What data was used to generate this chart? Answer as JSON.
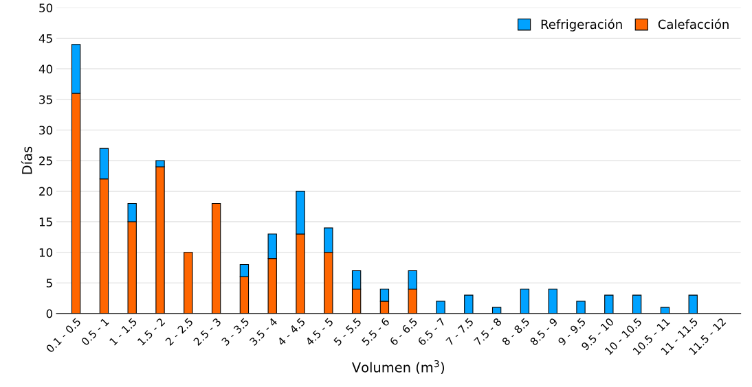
{
  "chart_data": {
    "type": "bar",
    "stacked": true,
    "xlabel": "Volumen (m$^{3}$)",
    "ylabel": "Días",
    "categories": [
      "0.1 - 0.5",
      "0.5 - 1",
      "1 - 1.5",
      "1.5 - 2",
      "2 - 2.5",
      "2.5 - 3",
      "3 - 3.5",
      "3.5 - 4",
      "4 - 4.5",
      "4.5 - 5",
      "5 - 5.5",
      "5.5 - 6",
      "6 - 6.5",
      "6.5 - 7",
      "7 - 7.5",
      "7.5 - 8",
      "8 - 8.5",
      "8.5 - 9",
      "9 - 9.5",
      "9.5 - 10",
      "10 - 10.5",
      "10.5 - 11",
      "11 - 11.5",
      "11.5 - 12"
    ],
    "series": [
      {
        "name": "Calefacción",
        "color": "#ff6600",
        "values": [
          36,
          22,
          15,
          24,
          10,
          18,
          6,
          9,
          13,
          10,
          4,
          2,
          4,
          0,
          0,
          0,
          0,
          0,
          0,
          0,
          0,
          0,
          0,
          0
        ]
      },
      {
        "name": "Refrigeración",
        "color": "#00a2ff",
        "values": [
          8,
          5,
          3,
          1,
          0,
          0,
          2,
          4,
          7,
          4,
          3,
          2,
          3,
          2,
          3,
          1,
          4,
          4,
          2,
          3,
          3,
          1,
          3,
          0
        ]
      }
    ],
    "ylim": [
      0,
      50
    ],
    "yticks": [
      0,
      5,
      10,
      15,
      20,
      25,
      30,
      35,
      40,
      45,
      50
    ],
    "grid": "y",
    "legend": "top right"
  }
}
